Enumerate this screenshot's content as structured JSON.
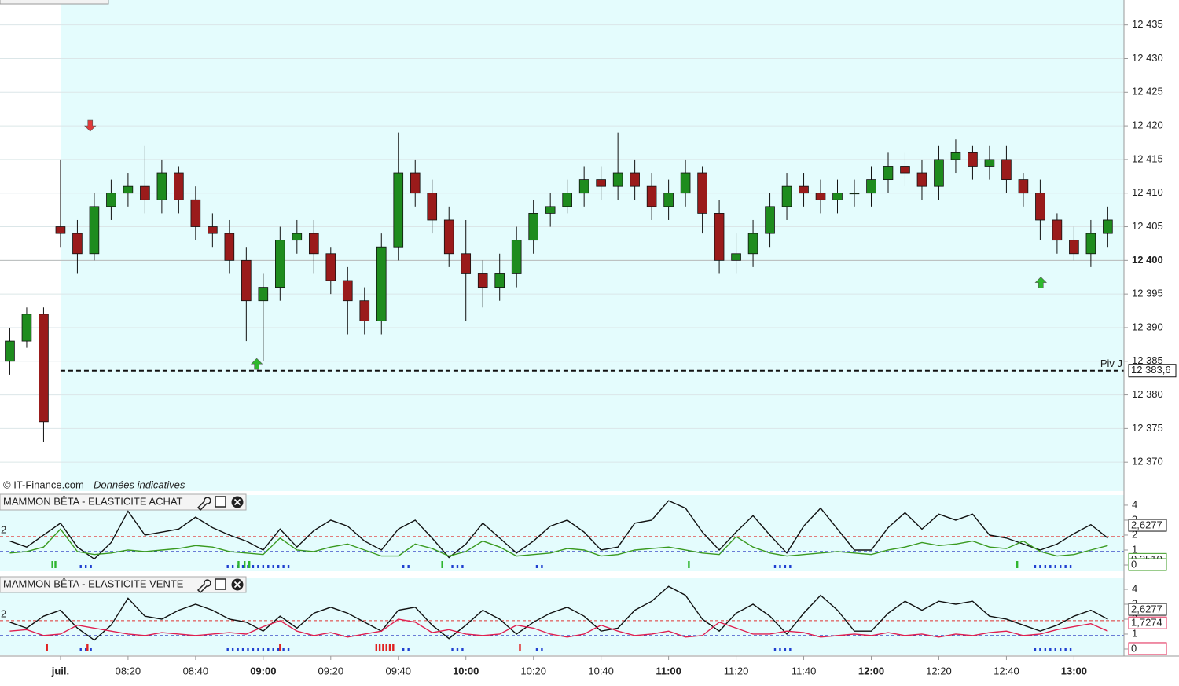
{
  "chart_data": [
    {
      "type": "candlestick",
      "source": "© IT-Finance.com",
      "note": "Données indicatives",
      "x": [
        465,
        470,
        475,
        480,
        485,
        490,
        495,
        500,
        505,
        510,
        515,
        520,
        525,
        530,
        535,
        540,
        545,
        550,
        555,
        560,
        565,
        570,
        575,
        580,
        585,
        590,
        595,
        600,
        605,
        610,
        615,
        620,
        625,
        630,
        635,
        640,
        645,
        650,
        655,
        660,
        665,
        670,
        675,
        680,
        685,
        690,
        695,
        700,
        705,
        710,
        715,
        720,
        725,
        730,
        735,
        740,
        745,
        750,
        755,
        760,
        765,
        770,
        775,
        780,
        785,
        790
      ],
      "open": [
        12385,
        12388,
        12392,
        12405,
        12404,
        12401,
        12408,
        12410,
        12411,
        12409,
        12413,
        12409,
        12405,
        12404,
        12400,
        12394,
        12396,
        12403,
        12404,
        12401,
        12397,
        12394,
        12391,
        12402,
        12413,
        12410,
        12406,
        12401,
        12398,
        12396,
        12398,
        12403,
        12407,
        12408,
        12410,
        12412,
        12411,
        12413,
        12411,
        12408,
        12410,
        12413,
        12407,
        12400,
        12401,
        12404,
        12408,
        12411,
        12410,
        12409,
        12410,
        12410,
        12412,
        12414,
        12413,
        12411,
        12415,
        12416,
        12414,
        12415,
        12412,
        12410,
        12406,
        12403,
        12401,
        12404
      ],
      "high": [
        12390,
        12393,
        12393,
        12415,
        12406,
        12410,
        12412,
        12413,
        12417,
        12415,
        12414,
        12411,
        12407,
        12406,
        12402,
        12398,
        12405,
        12406,
        12406,
        12402,
        12399,
        12396,
        12404,
        12419,
        12415,
        12412,
        12408,
        12406,
        12400,
        12401,
        12405,
        12409,
        12410,
        12412,
        12414,
        12414,
        12419,
        12415,
        12413,
        12412,
        12415,
        12414,
        12409,
        12404,
        12406,
        12410,
        12413,
        12413,
        12412,
        12412,
        12412,
        12414,
        12416,
        12416,
        12415,
        12417,
        12418,
        12417,
        12417,
        12417,
        12413,
        12412,
        12407,
        12405,
        12406,
        12408
      ],
      "low": [
        12383,
        12387,
        12373,
        12402,
        12398,
        12400,
        12406,
        12408,
        12407,
        12407,
        12407,
        12403,
        12402,
        12398,
        12388,
        12385,
        12394,
        12401,
        12398,
        12395,
        12389,
        12389,
        12389,
        12400,
        12408,
        12404,
        12399,
        12391,
        12393,
        12394,
        12396,
        12401,
        12405,
        12407,
        12408,
        12409,
        12409,
        12409,
        12406,
        12406,
        12408,
        12404,
        12398,
        12398,
        12399,
        12402,
        12406,
        12408,
        12407,
        12407,
        12408,
        12408,
        12410,
        12411,
        12409,
        12409,
        12413,
        12412,
        12412,
        12410,
        12408,
        12403,
        12401,
        12400,
        12399,
        12402
      ],
      "close": [
        12388,
        12392,
        12376,
        12404,
        12401,
        12408,
        12410,
        12411,
        12409,
        12413,
        12409,
        12405,
        12404,
        12400,
        12394,
        12396,
        12403,
        12404,
        12401,
        12397,
        12394,
        12391,
        12402,
        12413,
        12410,
        12406,
        12401,
        12398,
        12396,
        12398,
        12403,
        12407,
        12408,
        12410,
        12412,
        12411,
        12413,
        12411,
        12408,
        12410,
        12413,
        12407,
        12400,
        12401,
        12404,
        12408,
        12411,
        12410,
        12409,
        12410,
        12410,
        12412,
        12414,
        12413,
        12411,
        12415,
        12416,
        12414,
        12415,
        12412,
        12410,
        12406,
        12403,
        12401,
        12404,
        12406
      ],
      "up_color": "#1e8c1e",
      "down_color": "#9a1b1b",
      "xlim": [
        462.1,
        794.8
      ],
      "ylim": [
        12365.7,
        12438.7
      ],
      "yticks": [
        {
          "value": 12370,
          "label": "12 370"
        },
        {
          "value": 12375,
          "label": "12 375"
        },
        {
          "value": 12380,
          "label": "12 380"
        },
        {
          "value": 12385,
          "label": "12 385"
        },
        {
          "value": 12390,
          "label": "12 390"
        },
        {
          "value": 12395,
          "label": "12 395"
        },
        {
          "value": 12400,
          "label": "12 400"
        },
        {
          "value": 12405,
          "label": "12 405"
        },
        {
          "value": 12410,
          "label": "12 410"
        },
        {
          "value": 12415,
          "label": "12 415"
        },
        {
          "value": 12420,
          "label": "12 420"
        },
        {
          "value": 12425,
          "label": "12 425"
        },
        {
          "value": 12430,
          "label": "12 430"
        },
        {
          "value": 12435,
          "label": "12 435"
        }
      ],
      "grid": true,
      "last_line": 12400,
      "session_start": 480,
      "pivot": {
        "name": "Piv J",
        "value": 12383.6,
        "label": "12 383,6"
      },
      "markers": [
        {
          "x": 488.8,
          "value": 12420,
          "color": "#e03a3a",
          "direction": "down"
        },
        {
          "x": 538.1,
          "value": 12384.6,
          "color": "#2db82d",
          "direction": "up"
        },
        {
          "x": 770.2,
          "value": 12396.7,
          "color": "#2db82d",
          "direction": "up"
        }
      ]
    },
    {
      "type": "line",
      "title": "MAMMON BÊTA - ELASTICITE ACHAT",
      "left_label": "2",
      "x": [
        465,
        470,
        475,
        480,
        485,
        490,
        495,
        500,
        505,
        510,
        515,
        520,
        525,
        530,
        535,
        540,
        545,
        550,
        555,
        560,
        565,
        570,
        575,
        580,
        585,
        590,
        595,
        600,
        605,
        610,
        615,
        620,
        625,
        630,
        635,
        640,
        645,
        650,
        655,
        660,
        665,
        670,
        675,
        680,
        685,
        690,
        695,
        700,
        705,
        710,
        715,
        720,
        725,
        730,
        735,
        740,
        745,
        750,
        755,
        760,
        765,
        770,
        775,
        780,
        785,
        790
      ],
      "series": [
        {
          "color": "#111111",
          "values": [
            1.6,
            1.2,
            2.0,
            2.8,
            1.2,
            0.4,
            1.5,
            3.6,
            2.0,
            2.2,
            2.4,
            3.2,
            2.5,
            2.0,
            1.6,
            1.0,
            2.4,
            1.2,
            2.3,
            3.0,
            2.6,
            1.6,
            1.0,
            2.4,
            3.0,
            1.8,
            0.5,
            1.4,
            2.8,
            1.8,
            0.8,
            1.6,
            2.6,
            3.0,
            2.2,
            1.0,
            1.2,
            2.8,
            3.0,
            4.3,
            3.8,
            2.2,
            1.0,
            2.2,
            3.3,
            2.0,
            0.8,
            2.6,
            3.8,
            2.4,
            1.0,
            1.0,
            2.5,
            3.5,
            2.4,
            3.4,
            3.0,
            3.4,
            2.0,
            1.8,
            1.4,
            1.0,
            1.4,
            2.1,
            2.7,
            1.8
          ]
        },
        {
          "color": "#3a9a20",
          "values": [
            0.8,
            0.9,
            1.2,
            2.4,
            0.9,
            0.7,
            0.8,
            1.0,
            0.9,
            1.0,
            1.1,
            1.3,
            1.2,
            0.9,
            0.8,
            0.7,
            1.8,
            1.0,
            0.9,
            1.2,
            1.4,
            1.0,
            0.6,
            0.6,
            1.4,
            1.1,
            0.6,
            0.9,
            1.6,
            1.2,
            0.6,
            0.7,
            0.8,
            1.1,
            1.0,
            0.6,
            0.7,
            1.0,
            1.1,
            1.2,
            1.0,
            0.8,
            0.7,
            1.9,
            1.2,
            0.8,
            0.6,
            0.7,
            0.8,
            0.9,
            0.8,
            0.7,
            1.0,
            1.2,
            1.5,
            1.3,
            1.4,
            1.6,
            1.2,
            1.1,
            1.6,
            0.9,
            0.6,
            0.7,
            1.0,
            1.3
          ]
        }
      ],
      "levels": [
        {
          "value": 1.9,
          "color": "#e03030"
        },
        {
          "value": 0.9,
          "color": "#2030c0"
        }
      ],
      "tags": [
        {
          "value": 2.6277,
          "label": "2,6277",
          "color": "#111111"
        },
        {
          "value": 0.351,
          "label": "0,3510",
          "color": "#3a9a20"
        },
        {
          "value": 0,
          "label": "0",
          "color": "#3a9a20"
        }
      ],
      "signals": [
        {
          "color": "#1f3fd0",
          "x": [
            486,
            487.5,
            489,
            529.5,
            531,
            532.5,
            534,
            535.5,
            537,
            538.5,
            540,
            541.5,
            543,
            544.5,
            546,
            547.5,
            581.5,
            583,
            596,
            597.5,
            599,
            621,
            622.5,
            691.5,
            693,
            694.5,
            696,
            768.5,
            770,
            771.5,
            773,
            774.5,
            776,
            777.5,
            779
          ]
        },
        {
          "color": "#2fb52f",
          "x": [
            477.6,
            478.5,
            532.7,
            534.5,
            535.9,
            593,
            666,
            763.2
          ]
        }
      ],
      "xlim": [
        462.1,
        794.8
      ],
      "ylim": [
        -0.42,
        4.68
      ],
      "yticks": [
        0,
        1,
        2,
        3,
        4
      ]
    },
    {
      "type": "line",
      "title": "MAMMON BÊTA - ELASTICITE VENTE",
      "left_label": "2",
      "x": [
        465,
        470,
        475,
        480,
        485,
        490,
        495,
        500,
        505,
        510,
        515,
        520,
        525,
        530,
        535,
        540,
        545,
        550,
        555,
        560,
        565,
        570,
        575,
        580,
        585,
        590,
        595,
        600,
        605,
        610,
        615,
        620,
        625,
        630,
        635,
        640,
        645,
        650,
        655,
        660,
        665,
        670,
        675,
        680,
        685,
        690,
        695,
        700,
        705,
        710,
        715,
        720,
        725,
        730,
        735,
        740,
        745,
        750,
        755,
        760,
        765,
        770,
        775,
        780,
        785,
        790
      ],
      "series": [
        {
          "color": "#111111",
          "values": [
            1.8,
            1.4,
            2.2,
            2.6,
            1.4,
            0.6,
            1.6,
            3.4,
            2.2,
            2.0,
            2.6,
            3.0,
            2.6,
            2.0,
            1.8,
            1.2,
            2.2,
            1.4,
            2.4,
            2.8,
            2.4,
            1.8,
            1.2,
            2.6,
            2.8,
            1.6,
            0.7,
            1.6,
            2.6,
            2.0,
            1.0,
            1.8,
            2.4,
            2.8,
            2.2,
            1.2,
            1.4,
            2.6,
            3.2,
            4.2,
            3.6,
            2.0,
            1.2,
            2.4,
            3.0,
            2.2,
            1.0,
            2.4,
            3.6,
            2.6,
            1.2,
            1.2,
            2.4,
            3.2,
            2.6,
            3.2,
            3.0,
            3.2,
            2.2,
            2.0,
            1.6,
            1.2,
            1.6,
            2.2,
            2.6,
            2.0
          ]
        },
        {
          "color": "#e02050",
          "values": [
            1.2,
            1.3,
            0.9,
            1.0,
            1.6,
            1.4,
            1.2,
            1.0,
            0.9,
            1.1,
            1.0,
            0.9,
            1.0,
            1.1,
            1.0,
            1.5,
            1.9,
            1.2,
            0.9,
            1.1,
            0.8,
            1.0,
            1.2,
            2.0,
            1.8,
            1.1,
            1.3,
            1.0,
            0.9,
            1.0,
            1.6,
            1.4,
            1.0,
            0.8,
            1.0,
            1.6,
            1.2,
            0.9,
            1.0,
            1.2,
            0.8,
            0.9,
            1.8,
            1.4,
            1.0,
            1.0,
            1.2,
            1.1,
            0.8,
            0.9,
            1.0,
            0.9,
            1.1,
            0.9,
            1.0,
            0.8,
            1.0,
            0.9,
            1.1,
            1.2,
            0.9,
            1.0,
            1.3,
            1.5,
            1.7,
            1.2
          ]
        }
      ],
      "levels": [
        {
          "value": 1.9,
          "color": "#e03030"
        },
        {
          "value": 0.9,
          "color": "#2030c0"
        }
      ],
      "tags": [
        {
          "value": 2.6277,
          "label": "2,6277",
          "color": "#111111"
        },
        {
          "value": 1.7274,
          "label": "1,7274",
          "color": "#e02050"
        },
        {
          "value": 0,
          "label": "0",
          "color": "#e02050"
        }
      ],
      "signals": [
        {
          "color": "#1f3fd0",
          "x": [
            486,
            487.5,
            489,
            529.5,
            531,
            532.5,
            534,
            535.5,
            537,
            538.5,
            540,
            541.5,
            543,
            544.5,
            546,
            547.5,
            581.5,
            583,
            596,
            597.5,
            599,
            621,
            622.5,
            691.5,
            693,
            694.5,
            696,
            768.5,
            770,
            771.5,
            773,
            774.5,
            776,
            777.5,
            779
          ]
        },
        {
          "color": "#e02020",
          "x": [
            476,
            488,
            545,
            573.5,
            574.5,
            575.5,
            576.5,
            577.5,
            578.5,
            616
          ]
        }
      ],
      "xlim": [
        462.1,
        794.8
      ],
      "ylim": [
        -0.37,
        4.79
      ],
      "yticks": [
        0,
        1,
        2,
        3,
        4
      ],
      "xticks": [
        {
          "value": 480,
          "label": "juil."
        },
        {
          "value": 500,
          "label": "08:20"
        },
        {
          "value": 520,
          "label": "08:40"
        },
        {
          "value": 540,
          "label": "09:00"
        },
        {
          "value": 560,
          "label": "09:20"
        },
        {
          "value": 580,
          "label": "09:40"
        },
        {
          "value": 600,
          "label": "10:00"
        },
        {
          "value": 620,
          "label": "10:20"
        },
        {
          "value": 640,
          "label": "10:40"
        },
        {
          "value": 660,
          "label": "11:00"
        },
        {
          "value": 680,
          "label": "11:20"
        },
        {
          "value": 700,
          "label": "11:40"
        },
        {
          "value": 720,
          "label": "12:00"
        },
        {
          "value": 740,
          "label": "12:20"
        },
        {
          "value": 760,
          "label": "12:40"
        },
        {
          "value": 780,
          "label": "13:00"
        }
      ]
    }
  ]
}
